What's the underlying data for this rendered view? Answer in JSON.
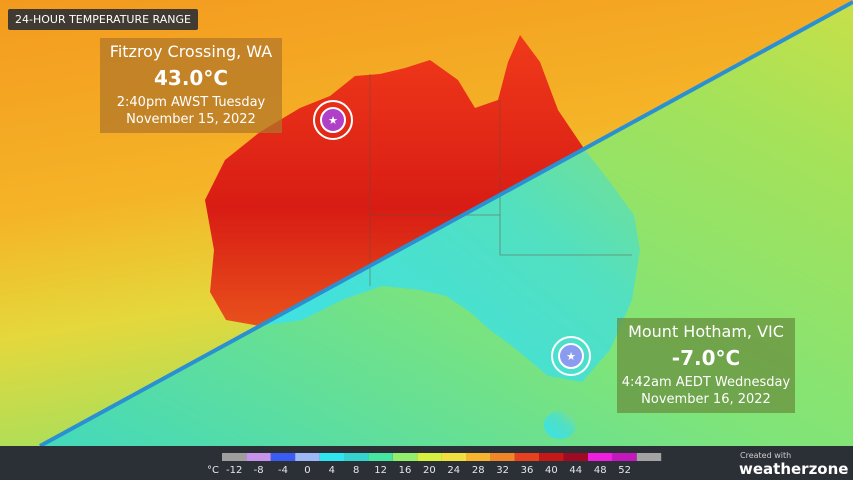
{
  "header": {
    "title": "24-HOUR TEMPERATURE RANGE"
  },
  "callouts": [
    {
      "place": "Fitzroy Crossing, WA",
      "temp": "43.0°C",
      "time": "2:40pm AWST Tuesday",
      "date": "November 15, 2022"
    },
    {
      "place": "Mount Hotham, VIC",
      "temp": "-7.0°C",
      "time": "4:42am AEDT Wednesday",
      "date": "November 16, 2022"
    }
  ],
  "legend": {
    "unit": "°C",
    "ticks": [
      -12,
      -8,
      -4,
      0,
      4,
      8,
      12,
      16,
      20,
      24,
      28,
      32,
      36,
      40,
      44,
      48,
      52
    ],
    "colors": [
      "#9e9e9e",
      "#c792ea",
      "#3b5cf2",
      "#9cb8f7",
      "#2fe6f0",
      "#35d2cf",
      "#44e6a2",
      "#92ef6c",
      "#d6f03f",
      "#f1de3f",
      "#f7b52f",
      "#f18628",
      "#e6401f",
      "#c71818",
      "#9e0b22",
      "#f01fe0",
      "#c418bf",
      "#a3a3a3"
    ]
  },
  "branding": {
    "created": "Created with",
    "brand": "weatherzone"
  }
}
